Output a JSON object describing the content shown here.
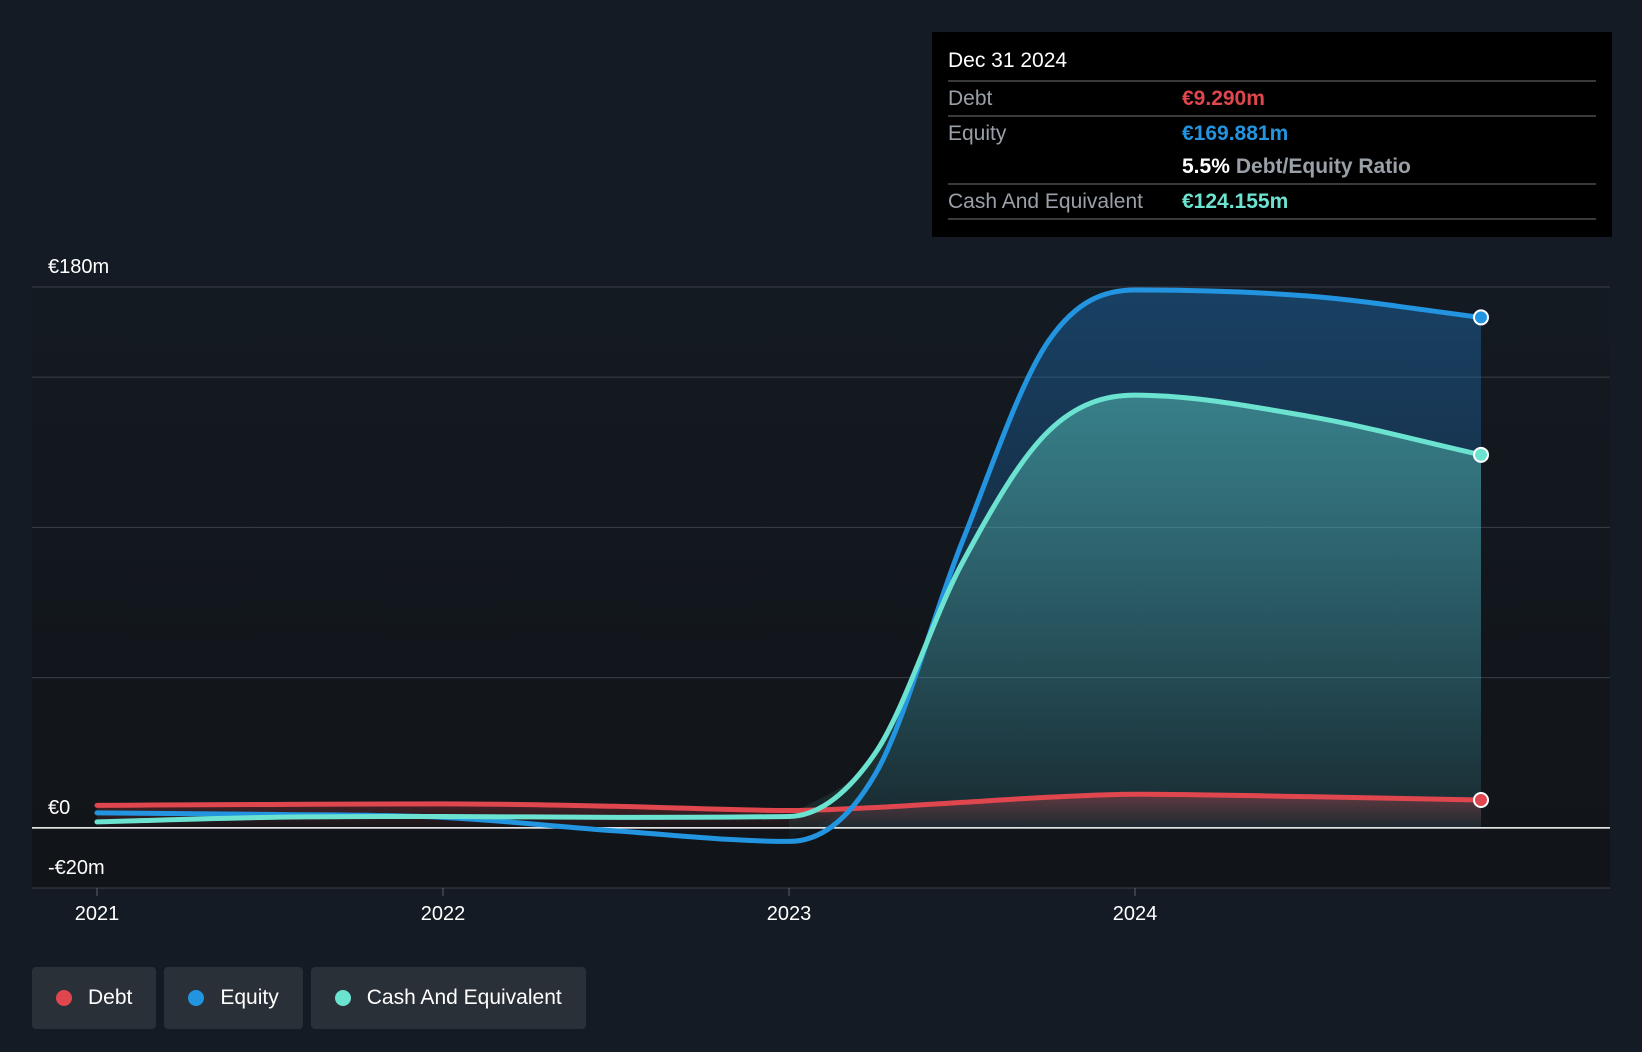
{
  "chart_data": {
    "type": "area",
    "x": [
      2021.0,
      2021.5,
      2022.0,
      2022.5,
      2023.0,
      2023.25,
      2023.5,
      2023.75,
      2024.0,
      2024.5,
      2025.0
    ],
    "series": [
      {
        "name": "Debt",
        "color": "#e0464e",
        "values": [
          7.5,
          7.8,
          8.0,
          7.2,
          5.8,
          6.8,
          8.5,
          10.2,
          11.2,
          10.4,
          9.29
        ]
      },
      {
        "name": "Equity",
        "color": "#2394df",
        "values": [
          5.0,
          4.5,
          3.5,
          -1.0,
          -4.5,
          18.0,
          95.0,
          162.0,
          179.0,
          177.0,
          169.881
        ]
      },
      {
        "name": "Cash And Equivalent",
        "color": "#6be3d0",
        "values": [
          2.0,
          3.5,
          3.8,
          3.5,
          3.8,
          25.0,
          88.0,
          132.0,
          144.0,
          137.0,
          124.155
        ]
      }
    ],
    "ylim": [
      -20,
      180
    ],
    "y_tick_labels": [
      {
        "value": 180,
        "label": "€180m"
      },
      {
        "value": 0,
        "label": "€0"
      },
      {
        "value": -20,
        "label": "-€20m"
      }
    ],
    "x_tick_labels": [
      {
        "value": 2021.0,
        "label": "2021"
      },
      {
        "value": 2022.0,
        "label": "2022"
      },
      {
        "value": 2023.0,
        "label": "2023"
      },
      {
        "value": 2024.0,
        "label": "2024"
      }
    ],
    "gridlines_y": [
      180,
      150,
      100,
      50
    ],
    "grid": true,
    "legend_position": "bottom-left"
  },
  "tooltip": {
    "date": "Dec 31 2024",
    "debt_label": "Debt",
    "debt_value": "€9.290m",
    "equity_label": "Equity",
    "equity_value": "€169.881m",
    "ratio_value": "5.5%",
    "ratio_label": "Debt/Equity Ratio",
    "cash_label": "Cash And Equivalent",
    "cash_value": "€124.155m"
  },
  "legend": {
    "debt": "Debt",
    "equity": "Equity",
    "cash": "Cash And Equivalent"
  },
  "colors": {
    "debt": "#e0464e",
    "equity": "#2394df",
    "cash": "#6be3d0",
    "background": "#151b24"
  }
}
